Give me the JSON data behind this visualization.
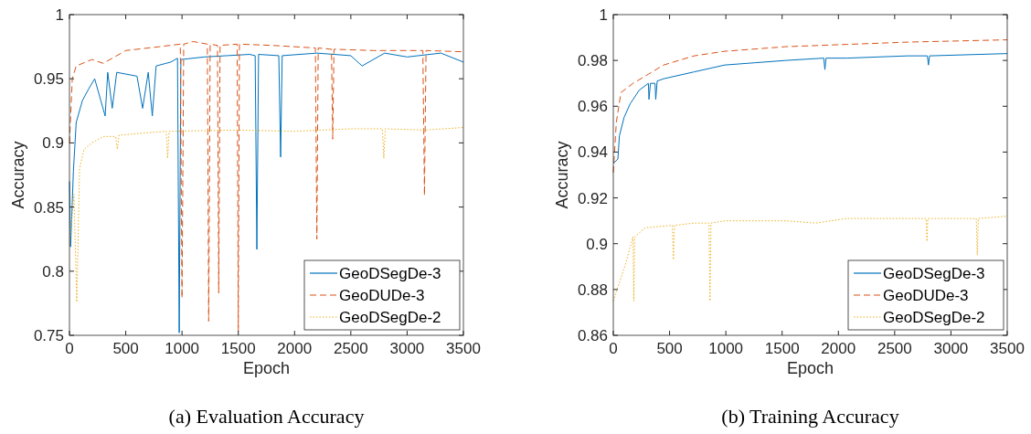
{
  "chart_data": [
    {
      "type": "line",
      "xlabel": "Epoch",
      "ylabel": "Accuracy",
      "xlim": [
        0,
        3500
      ],
      "ylim": [
        0.75,
        1
      ],
      "xticks": [
        0,
        500,
        1000,
        1500,
        2000,
        2500,
        3000,
        3500
      ],
      "yticks": [
        0.75,
        0.8,
        0.85,
        0.9,
        0.95,
        1
      ],
      "legend": "bottom right",
      "grid": false,
      "annotations": [
        "(a) Evaluation Accuracy"
      ],
      "series": [
        {
          "name": "GeoDSegDe-3",
          "color": "#0072bd",
          "line_style": "solid",
          "x": [
            0,
            10,
            35,
            60,
            115,
            170,
            224,
            317,
            340,
            380,
            420,
            600,
            650,
            700,
            736,
            770,
            900,
            960,
            975,
            990,
            1200,
            1400,
            1600,
            1650,
            1665,
            1680,
            1860,
            1876,
            1890,
            2200,
            2500,
            2600,
            2800,
            3000,
            3300,
            3500
          ],
          "values": [
            0.87,
            0.819,
            0.878,
            0.916,
            0.933,
            0.942,
            0.95,
            0.921,
            0.955,
            0.927,
            0.955,
            0.952,
            0.927,
            0.955,
            0.921,
            0.96,
            0.963,
            0.966,
            0.752,
            0.965,
            0.967,
            0.968,
            0.969,
            0.968,
            0.817,
            0.969,
            0.968,
            0.889,
            0.968,
            0.97,
            0.968,
            0.96,
            0.97,
            0.967,
            0.97,
            0.963
          ]
        },
        {
          "name": "GeoDUDe-3",
          "color": "#d95319",
          "line_style": "dashed",
          "x": [
            0,
            25,
            60,
            200,
            300,
            500,
            800,
            985,
            1000,
            1015,
            1100,
            1225,
            1237,
            1250,
            1315,
            1326,
            1338,
            1490,
            1500,
            1510,
            1800,
            2185,
            2198,
            2210,
            2328,
            2339,
            2350,
            2700,
            3140,
            3154,
            3168,
            3500
          ],
          "values": [
            0.9,
            0.95,
            0.96,
            0.965,
            0.962,
            0.972,
            0.975,
            0.977,
            0.779,
            0.977,
            0.979,
            0.977,
            0.761,
            0.977,
            0.976,
            0.783,
            0.976,
            0.977,
            0.753,
            0.977,
            0.976,
            0.974,
            0.825,
            0.974,
            0.973,
            0.903,
            0.973,
            0.972,
            0.972,
            0.859,
            0.972,
            0.971
          ]
        },
        {
          "name": "GeoDSegDe-2",
          "color": "#edb120",
          "line_style": "dotted",
          "x": [
            0,
            40,
            65,
            90,
            130,
            200,
            300,
            410,
            425,
            440,
            700,
            860,
            872,
            885,
            1500,
            2000,
            2500,
            2780,
            2793,
            2806,
            3150,
            3500
          ],
          "values": [
            0.82,
            0.86,
            0.776,
            0.88,
            0.895,
            0.9,
            0.905,
            0.905,
            0.895,
            0.906,
            0.908,
            0.909,
            0.888,
            0.909,
            0.91,
            0.909,
            0.911,
            0.911,
            0.888,
            0.911,
            0.91,
            0.912
          ]
        }
      ]
    },
    {
      "type": "line",
      "xlabel": "Epoch",
      "ylabel": "Accuracy",
      "xlim": [
        0,
        3500
      ],
      "ylim": [
        0.86,
        1
      ],
      "xticks": [
        0,
        500,
        1000,
        1500,
        2000,
        2500,
        3000,
        3500
      ],
      "yticks": [
        0.86,
        0.88,
        0.9,
        0.92,
        0.94,
        0.96,
        0.98,
        1
      ],
      "legend": "bottom right",
      "grid": false,
      "annotations": [
        "(b) Training Accuracy"
      ],
      "series": [
        {
          "name": "GeoDSegDe-3",
          "color": "#0072bd",
          "line_style": "solid",
          "x": [
            0,
            41,
            54,
            95,
            149,
            230,
            312,
            317,
            330,
            371,
            377,
            390,
            447,
            718,
            990,
            1261,
            1532,
            1870,
            1880,
            1890,
            2074,
            2616,
            2790,
            2800,
            2810,
            3500
          ],
          "values": [
            0.935,
            0.937,
            0.947,
            0.955,
            0.961,
            0.967,
            0.97,
            0.963,
            0.97,
            0.97,
            0.963,
            0.971,
            0.972,
            0.975,
            0.978,
            0.979,
            0.98,
            0.981,
            0.976,
            0.981,
            0.981,
            0.982,
            0.982,
            0.978,
            0.982,
            0.983
          ]
        },
        {
          "name": "GeoDUDe-3",
          "color": "#d95319",
          "line_style": "dashed",
          "x": [
            0,
            27,
            68,
            176,
            312,
            447,
            718,
            990,
            1532,
            2074,
            2616,
            3500
          ],
          "values": [
            0.931,
            0.953,
            0.966,
            0.97,
            0.974,
            0.978,
            0.982,
            0.984,
            0.986,
            0.987,
            0.988,
            0.989
          ]
        },
        {
          "name": "GeoDSegDe-2",
          "color": "#edb120",
          "line_style": "dotted",
          "x": [
            0,
            108,
            175,
            182,
            190,
            285,
            525,
            534,
            543,
            718,
            850,
            859,
            868,
            990,
            1532,
            1800,
            2074,
            2700,
            2780,
            2787,
            2795,
            3225,
            3234,
            3243,
            3500
          ],
          "values": [
            0.875,
            0.891,
            0.903,
            0.875,
            0.903,
            0.907,
            0.908,
            0.893,
            0.908,
            0.909,
            0.909,
            0.875,
            0.909,
            0.91,
            0.91,
            0.909,
            0.911,
            0.911,
            0.911,
            0.901,
            0.911,
            0.911,
            0.895,
            0.911,
            0.912
          ]
        }
      ]
    }
  ]
}
